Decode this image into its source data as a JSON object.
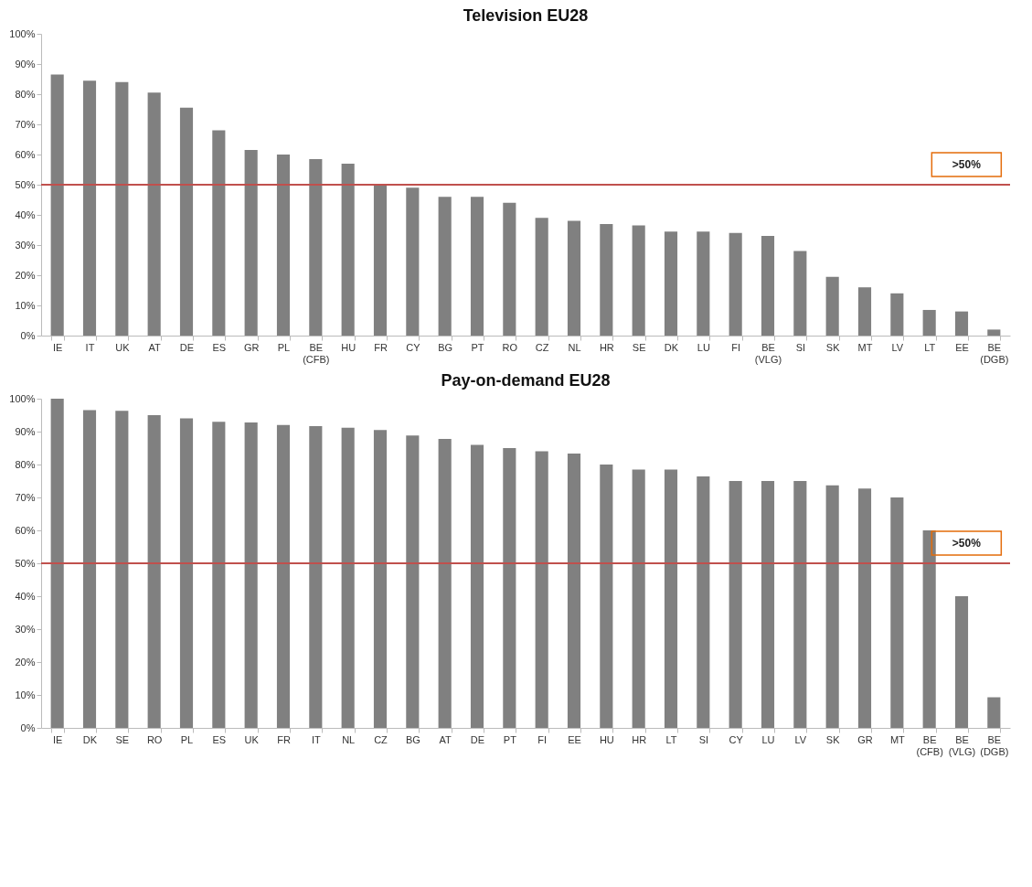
{
  "chart_data": [
    {
      "type": "bar",
      "title": "Television EU28",
      "categories": [
        "IE",
        "IT",
        "UK",
        "AT",
        "DE",
        "ES",
        "GR",
        "PL",
        "BE (CFB)",
        "HU",
        "FR",
        "CY",
        "BG",
        "PT",
        "RO",
        "CZ",
        "NL",
        "HR",
        "SE",
        "DK",
        "LU",
        "FI",
        "BE (VLG)",
        "SI",
        "SK",
        "MT",
        "LV",
        "LT",
        "EE",
        "BE (DGB)"
      ],
      "values": [
        86.5,
        84.5,
        84,
        80.5,
        75.5,
        68,
        61.5,
        60,
        58.5,
        57,
        50,
        49,
        46,
        46,
        44,
        39,
        38,
        37,
        36.5,
        34.5,
        34.5,
        34,
        33,
        28,
        19.5,
        16,
        14,
        8.5,
        8,
        2
      ],
      "color": "#808080",
      "ylim": [
        0,
        100
      ],
      "yticks": [
        {
          "value": 0,
          "label": "0%"
        },
        {
          "value": 10,
          "label": "10%"
        },
        {
          "value": 20,
          "label": "20%"
        },
        {
          "value": 30,
          "label": "30%"
        },
        {
          "value": 40,
          "label": "40%"
        },
        {
          "value": 50,
          "label": "50%"
        },
        {
          "value": 60,
          "label": "60%"
        },
        {
          "value": 70,
          "label": "70%"
        },
        {
          "value": 80,
          "label": "80%"
        },
        {
          "value": 90,
          "label": "90%"
        },
        {
          "value": 100,
          "label": "100%"
        }
      ],
      "ref_lines": [
        {
          "axis": "y",
          "value": 50,
          "label": ">50%",
          "color": "#c0504d"
        }
      ],
      "grid": false
    },
    {
      "type": "bar",
      "title": "Pay-on-demand EU28",
      "categories": [
        "IE",
        "DK",
        "SE",
        "RO",
        "PL",
        "ES",
        "UK",
        "FR",
        "IT",
        "NL",
        "CZ",
        "BG",
        "AT",
        "DE",
        "PT",
        "FI",
        "EE",
        "HU",
        "HR",
        "LT",
        "SI",
        "CY",
        "LU",
        "LV",
        "SK",
        "GR",
        "MT",
        "BE (CFB)",
        "BE (VLG)",
        "BE (DGB)"
      ],
      "values": [
        100,
        96.5,
        96.3,
        95,
        94,
        93,
        92.8,
        92,
        91.7,
        91.2,
        90.5,
        88.8,
        87.8,
        86,
        85,
        84,
        83.3,
        80,
        78.5,
        78.5,
        76.4,
        75,
        75,
        75,
        73.7,
        72.7,
        70,
        60,
        40,
        9.3
      ],
      "color": "#808080",
      "ylim": [
        0,
        100
      ],
      "yticks": [
        {
          "value": 0,
          "label": "0%"
        },
        {
          "value": 10,
          "label": "10%"
        },
        {
          "value": 20,
          "label": "20%"
        },
        {
          "value": 30,
          "label": "30%"
        },
        {
          "value": 40,
          "label": "40%"
        },
        {
          "value": 50,
          "label": "50%"
        },
        {
          "value": 60,
          "label": "60%"
        },
        {
          "value": 70,
          "label": "70%"
        },
        {
          "value": 80,
          "label": "80%"
        },
        {
          "value": 90,
          "label": "90%"
        },
        {
          "value": 100,
          "label": "100%"
        }
      ],
      "ref_lines": [
        {
          "axis": "y",
          "value": 50,
          "label": ">50%",
          "color": "#c0504d"
        }
      ],
      "grid": false
    }
  ]
}
